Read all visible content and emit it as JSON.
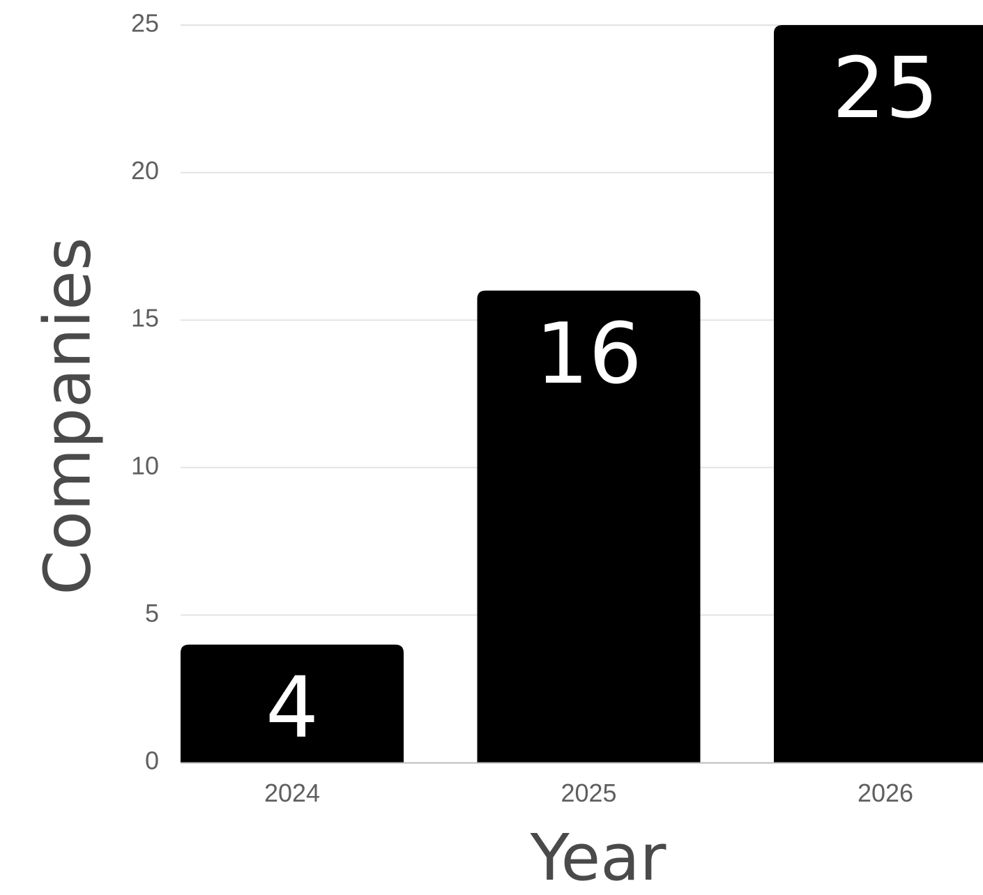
{
  "chart_data": {
    "type": "bar",
    "title": "",
    "xlabel": "Year",
    "ylabel": "Companies",
    "categories": [
      "2024",
      "2025",
      "2026"
    ],
    "values": [
      4,
      16,
      25
    ],
    "data_labels": [
      "4",
      "16",
      "25"
    ],
    "y_ticks": [
      "0",
      "5",
      "10",
      "15",
      "20",
      "25"
    ],
    "ylim": [
      0,
      25
    ],
    "grid": true,
    "legend": "none",
    "colors": {
      "bar": "#000000",
      "data_label": "#ffffff",
      "grid": "#e3e3e3",
      "axis": "#bdbdbd",
      "tick_label": "#5f5f5f",
      "axis_title": "#4a4a4a"
    }
  }
}
